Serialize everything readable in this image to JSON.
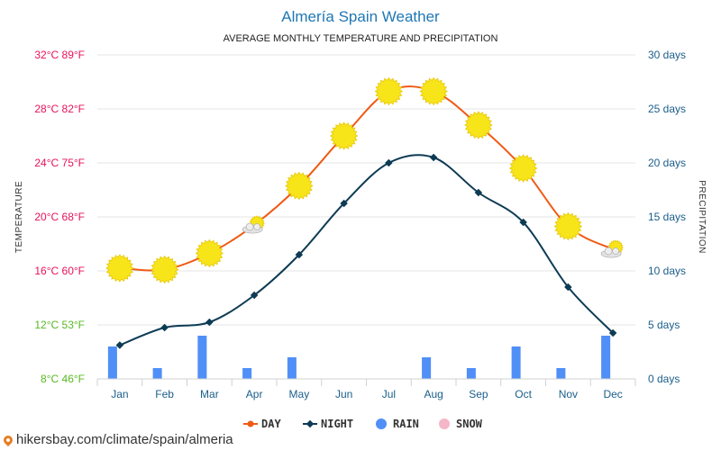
{
  "chart_data": {
    "type": "line",
    "title": "Almería Spain Weather",
    "subtitle": "AVERAGE MONTHLY TEMPERATURE AND PRECIPITATION",
    "ylabel_left": "TEMPERATURE",
    "ylabel_right": "PRECIPITATION",
    "categories": [
      "Jan",
      "Feb",
      "Mar",
      "Apr",
      "May",
      "Jun",
      "Jul",
      "Aug",
      "Sep",
      "Oct",
      "Nov",
      "Dec"
    ],
    "temp_ticks": [
      {
        "c": 32,
        "label": "32°C 89°F",
        "color": "#e8115b"
      },
      {
        "c": 28,
        "label": "28°C 82°F",
        "color": "#e8115b"
      },
      {
        "c": 24,
        "label": "24°C 75°F",
        "color": "#e8115b"
      },
      {
        "c": 20,
        "label": "20°C 68°F",
        "color": "#e8115b"
      },
      {
        "c": 16,
        "label": "16°C 60°F",
        "color": "#e8115b"
      },
      {
        "c": 12,
        "label": "12°C 53°F",
        "color": "#58b923"
      },
      {
        "c": 8,
        "label": "8°C 46°F",
        "color": "#58b923"
      }
    ],
    "precip_ticks": [
      {
        "days": 30,
        "label": "30 days"
      },
      {
        "days": 25,
        "label": "25 days"
      },
      {
        "days": 20,
        "label": "20 days"
      },
      {
        "days": 15,
        "label": "15 days"
      },
      {
        "days": 10,
        "label": "10 days"
      },
      {
        "days": 5,
        "label": "5 days"
      },
      {
        "days": 0,
        "label": "0 days"
      }
    ],
    "ylim_temp": [
      8,
      32
    ],
    "ylim_precip": [
      0,
      30
    ],
    "series": [
      {
        "name": "DAY",
        "color": "#f05a14",
        "values": [
          16.2,
          16.1,
          17.3,
          19.4,
          22.3,
          26.0,
          29.3,
          29.3,
          26.8,
          23.6,
          19.3,
          17.6
        ]
      },
      {
        "name": "NIGHT",
        "color": "#0d3b54",
        "values": [
          10.5,
          11.8,
          12.2,
          14.2,
          17.2,
          21.0,
          24.0,
          24.4,
          21.8,
          19.6,
          14.8,
          11.4
        ]
      },
      {
        "name": "RAIN",
        "color": "#4f8ff7",
        "unit": "days",
        "values": [
          3,
          1,
          4,
          1,
          2,
          0,
          0,
          2,
          1,
          3,
          1,
          4
        ]
      },
      {
        "name": "SNOW",
        "color": "#f4b6c8",
        "unit": "days",
        "values": [
          0,
          0,
          0,
          0,
          0,
          0,
          0,
          0,
          0,
          0,
          0,
          0
        ]
      }
    ],
    "day_icons": [
      "sun",
      "sun",
      "sun",
      "partly-cloudy",
      "sun",
      "sun",
      "sun",
      "sun",
      "sun",
      "sun",
      "sun",
      "partly-cloudy"
    ],
    "grid": true,
    "legend_position": "bottom-center"
  },
  "colors": {
    "title": "#1f77b4",
    "right_axis": "#1b5e8a",
    "month_labels": "#1b5e8a",
    "grid": "#e6e6e6",
    "sun": "#f7e51a",
    "sun_edge": "#e8c80c"
  },
  "footer": {
    "text": "hikersbay.com/climate/spain/almeria"
  }
}
